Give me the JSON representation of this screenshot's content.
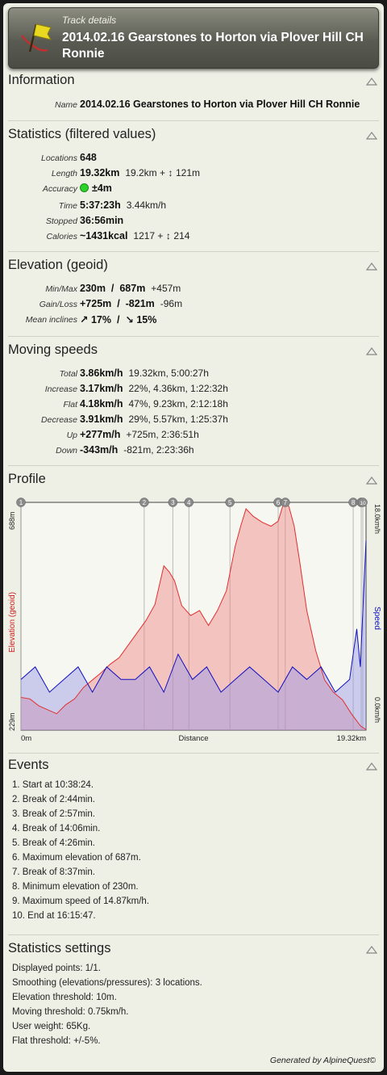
{
  "header": {
    "subtitle": "Track details",
    "title": "2014.02.16 Gearstones to Horton via Plover Hill CH Ronnie"
  },
  "information": {
    "heading": "Information",
    "name_label": "Name",
    "name_value": "2014.02.16 Gearstones to Horton via Plover Hill CH Ronnie"
  },
  "statistics": {
    "heading": "Statistics (filtered values)",
    "locations": {
      "label": "Locations",
      "value": "648"
    },
    "length": {
      "label": "Length",
      "value": "19.32km",
      "extra": "19.2km +",
      "extra2": "121m"
    },
    "accuracy": {
      "label": "Accuracy",
      "value": "±4m",
      "color": "#2bd22b"
    },
    "time": {
      "label": "Time",
      "value": "5:37:23h",
      "extra": "3.44km/h"
    },
    "stopped": {
      "label": "Stopped",
      "value": "36:56min"
    },
    "calories": {
      "label": "Calories",
      "value": "~1431kcal",
      "extra": "1217 +",
      "extra2": "214"
    }
  },
  "elevation": {
    "heading": "Elevation (geoid)",
    "minmax": {
      "label": "Min/Max",
      "value": "230m  /  687m",
      "extra": "+457m"
    },
    "gainloss": {
      "label": "Gain/Loss",
      "value": "+725m  /  -821m",
      "extra": "-96m"
    },
    "inclines": {
      "label": "Mean inclines",
      "up": "17%",
      "sep": "/",
      "down": "15%"
    }
  },
  "moving": {
    "heading": "Moving speeds",
    "rows": [
      {
        "label": "Total",
        "value": "3.86km/h",
        "extra": "19.32km, 5:00:27h"
      },
      {
        "label": "Increase",
        "value": "3.17km/h",
        "extra": "22%, 4.36km, 1:22:32h"
      },
      {
        "label": "Flat",
        "value": "4.18km/h",
        "extra": "47%, 9.23km, 2:12:18h"
      },
      {
        "label": "Decrease",
        "value": "3.91km/h",
        "extra": "29%, 5.57km, 1:25:37h"
      },
      {
        "label": "Up",
        "value": "+277m/h",
        "extra": "+725m, 2:36:51h"
      },
      {
        "label": "Down",
        "value": "-343m/h",
        "extra": "-821m, 2:23:36h"
      }
    ]
  },
  "profile": {
    "heading": "Profile",
    "y_top_label": "688m",
    "y_bottom_label": "229m",
    "y_left_title": "Elevation (geoid)",
    "y_right_title": "Speed",
    "y_right_top": "18.0km/h",
    "y_right_bottom": "0.0km/h",
    "x_left": "0m",
    "x_center": "Distance",
    "x_right": "19.32km",
    "elevation_color": "#e03030",
    "speed_color": "#1010c0"
  },
  "chart_data": {
    "type": "area",
    "x_range": [
      0,
      19.32
    ],
    "elevation_range": [
      229,
      688
    ],
    "speed_range": [
      0,
      18.0
    ],
    "markers": [
      {
        "id": "1",
        "x": 0.0
      },
      {
        "id": "2",
        "x": 6.9
      },
      {
        "id": "3",
        "x": 8.5
      },
      {
        "id": "4",
        "x": 9.4
      },
      {
        "id": "5",
        "x": 11.7
      },
      {
        "id": "6",
        "x": 14.4
      },
      {
        "id": "7",
        "x": 14.8
      },
      {
        "id": "8",
        "x": 18.6
      },
      {
        "id": "9",
        "x": 19.05
      },
      {
        "id": "10",
        "x": 19.32
      }
    ],
    "elevation": {
      "x": [
        0,
        0.5,
        1.0,
        1.5,
        2.0,
        2.5,
        3.0,
        3.5,
        4.0,
        4.5,
        5.0,
        5.5,
        6.0,
        6.5,
        7.0,
        7.5,
        8.0,
        8.3,
        8.6,
        9.0,
        9.5,
        10.0,
        10.5,
        11.0,
        11.5,
        12.0,
        12.3,
        12.6,
        13.0,
        13.5,
        14.0,
        14.4,
        14.7,
        15.0,
        15.3,
        15.6,
        16.0,
        16.5,
        17.0,
        17.5,
        18.0,
        18.5,
        19.0,
        19.32
      ],
      "values": [
        295,
        292,
        278,
        270,
        262,
        280,
        292,
        315,
        330,
        345,
        362,
        375,
        400,
        425,
        450,
        482,
        560,
        548,
        530,
        480,
        460,
        470,
        440,
        470,
        510,
        600,
        640,
        675,
        660,
        648,
        640,
        650,
        686,
        680,
        640,
        570,
        470,
        390,
        330,
        305,
        290,
        262,
        238,
        230
      ]
    },
    "speed": {
      "x": [
        0,
        0.8,
        1.6,
        2.4,
        3.2,
        4.0,
        4.8,
        5.6,
        6.4,
        7.2,
        8.0,
        8.8,
        9.6,
        10.4,
        11.2,
        12.0,
        12.8,
        13.6,
        14.4,
        15.2,
        16.0,
        16.8,
        17.6,
        18.4,
        18.8,
        19.0,
        19.32
      ],
      "values": [
        4,
        5,
        3,
        4,
        5,
        3,
        5,
        4,
        4,
        5,
        3,
        6,
        4,
        5,
        3,
        4,
        5,
        4,
        3,
        5,
        4,
        5,
        3,
        4,
        8,
        5,
        15
      ]
    }
  },
  "events": {
    "heading": "Events",
    "items": [
      "1. Start at 10:38:24.",
      "2. Break of 2:44min.",
      "3. Break of 2:57min.",
      "4. Break of 14:06min.",
      "5. Break of 4:26min.",
      "6. Maximum elevation of 687m.",
      "7. Break of 8:37min.",
      "8. Minimum elevation of 230m.",
      "9. Maximum speed of 14.87km/h.",
      "10. End at 16:15:47."
    ]
  },
  "settings": {
    "heading": "Statistics settings",
    "items": [
      "Displayed points: 1/1.",
      "Smoothing (elevations/pressures): 3 locations.",
      "Elevation threshold: 10m.",
      "Moving threshold: 0.75km/h.",
      "User weight: 65Kg.",
      "Flat threshold: +/-5%."
    ]
  },
  "footer": "Generated by AlpineQuest©"
}
